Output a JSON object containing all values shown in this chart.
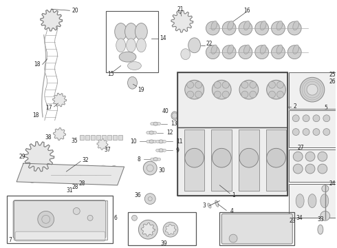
{
  "figsize": [
    4.9,
    3.6
  ],
  "dpi": 100,
  "bg": "#ffffff",
  "parts_color": "#cccccc",
  "line_color": "#444444",
  "label_color": "#222222",
  "box_color": "#555555",
  "label_fs": 5.5,
  "arrow_color": "#333333",
  "part_fill": "#e0e0e0",
  "part_edge": "#666666",
  "chain_color": "#777777",
  "gear_color": "#999999"
}
